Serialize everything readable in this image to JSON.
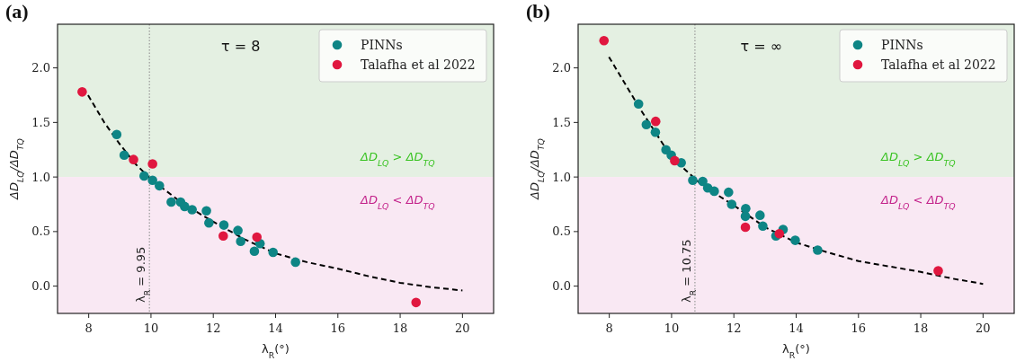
{
  "chart_data": [
    {
      "type": "scatter",
      "title": "(a)",
      "xlabel": "λ$_{R}$(°)",
      "ylabel": "ΔD$_{LQ}$/ΔD$_{TQ}$",
      "xlim": [
        7,
        21
      ],
      "ylim": [
        -0.25,
        2.4
      ],
      "xticks": [
        8,
        10,
        12,
        14,
        16,
        18,
        20
      ],
      "yticks": [
        {
          "value": 0,
          "label": "0.0"
        },
        {
          "value": 0.5,
          "label": "0.5"
        },
        {
          "value": 1,
          "label": "1.0"
        },
        {
          "value": 1.5,
          "label": "1.5"
        },
        {
          "value": 2,
          "label": "2.0"
        }
      ],
      "legend": "top right",
      "marker": "circle",
      "annotations": [
        "τ = 8"
      ],
      "bands": [
        {
          "axis": "y",
          "from": 1,
          "to": 2.4,
          "label": "ΔD$_{LQ}$ > ΔD$_{TQ}$",
          "color": "#e4f0e2"
        },
        {
          "axis": "y",
          "from": -0.25,
          "to": 1,
          "label": "ΔD$_{LQ}$ < ΔD$_{TQ}$",
          "color": "#f9e8f3"
        }
      ],
      "ref_lines": [
        {
          "axis": "x",
          "value": 9.95,
          "label": "λ$_{R}$ = 9.95",
          "color": "#999999",
          "line_style": "dotted"
        }
      ],
      "series": [
        {
          "type": "line",
          "color": "#000000",
          "line_style": "dashed",
          "marker": "none",
          "x": [
            7.98,
            8.5,
            9,
            9.5,
            10,
            11,
            12,
            13,
            14,
            15,
            16,
            17,
            18,
            19,
            20
          ],
          "values": [
            1.75,
            1.5,
            1.3,
            1.12,
            0.98,
            0.76,
            0.59,
            0.43,
            0.3,
            0.22,
            0.16,
            0.09,
            0.03,
            -0.01,
            -0.04
          ]
        },
        {
          "name": "PINNs",
          "color": "#0e8585",
          "x": [
            8.9,
            9.14,
            9.78,
            10.05,
            10.27,
            10.65,
            10.95,
            11.08,
            11.32,
            11.78,
            11.86,
            12.34,
            12.79,
            12.88,
            13.5,
            13.32,
            13.92,
            14.64
          ],
          "values": [
            1.39,
            1.2,
            1.01,
            0.97,
            0.92,
            0.77,
            0.77,
            0.73,
            0.7,
            0.69,
            0.58,
            0.56,
            0.51,
            0.41,
            0.39,
            0.32,
            0.31,
            0.22
          ]
        },
        {
          "name": "Talafha et al 2022",
          "color": "#e0173f",
          "x": [
            7.79,
            9.44,
            10.05,
            12.32,
            13.4,
            18.51
          ],
          "values": [
            1.78,
            1.16,
            1.12,
            0.46,
            0.45,
            -0.15
          ]
        }
      ]
    },
    {
      "type": "scatter",
      "title": "(b)",
      "xlabel": "λ$_{R}$(°)",
      "ylabel": "ΔD$_{LQ}$/ΔD$_{TQ}$",
      "xlim": [
        7,
        21
      ],
      "ylim": [
        -0.25,
        2.4
      ],
      "xticks": [
        8,
        10,
        12,
        14,
        16,
        18,
        20
      ],
      "yticks": [
        {
          "value": 0,
          "label": "0.0"
        },
        {
          "value": 0.5,
          "label": "0.5"
        },
        {
          "value": 1,
          "label": "1.0"
        },
        {
          "value": 1.5,
          "label": "1.5"
        },
        {
          "value": 2,
          "label": "2.0"
        }
      ],
      "legend": "top right",
      "marker": "circle",
      "annotations": [
        "τ = ∞"
      ],
      "bands": [
        {
          "axis": "y",
          "from": 1,
          "to": 2.4,
          "label": "ΔD$_{LQ}$ > ΔD$_{TQ}$",
          "color": "#e4f0e2"
        },
        {
          "axis": "y",
          "from": -0.25,
          "to": 1,
          "label": "ΔD$_{LQ}$ < ΔD$_{TQ}$",
          "color": "#f9e8f3"
        }
      ],
      "ref_lines": [
        {
          "axis": "x",
          "value": 10.75,
          "label": "λ$_{R}$ = 10.75",
          "color": "#999999",
          "line_style": "dotted"
        }
      ],
      "series": [
        {
          "type": "line",
          "color": "#000000",
          "line_style": "dashed",
          "marker": "none",
          "x": [
            7.99,
            9,
            10,
            11,
            12,
            13,
            14,
            15,
            16,
            17,
            18,
            19,
            20
          ],
          "values": [
            2.1,
            1.62,
            1.18,
            0.92,
            0.74,
            0.54,
            0.4,
            0.31,
            0.23,
            0.18,
            0.13,
            0.07,
            0.02
          ]
        },
        {
          "name": "PINNs",
          "color": "#0e8585",
          "x": [
            8.94,
            9.19,
            9.48,
            9.82,
            9.99,
            10.31,
            10.68,
            11,
            11.16,
            11.37,
            11.83,
            11.93,
            12.38,
            12.37,
            12.84,
            12.93,
            13.35,
            13.58,
            13.97,
            14.69
          ],
          "values": [
            1.67,
            1.48,
            1.41,
            1.25,
            1.2,
            1.13,
            0.97,
            0.96,
            0.9,
            0.87,
            0.86,
            0.75,
            0.71,
            0.64,
            0.65,
            0.55,
            0.46,
            0.52,
            0.42,
            0.33
          ]
        },
        {
          "name": "Talafha et al 2022",
          "color": "#e0173f",
          "x": [
            7.83,
            9.49,
            10.1,
            12.37,
            13.46,
            18.56
          ],
          "values": [
            2.25,
            1.51,
            1.15,
            0.54,
            0.48,
            0.14
          ]
        }
      ]
    }
  ]
}
